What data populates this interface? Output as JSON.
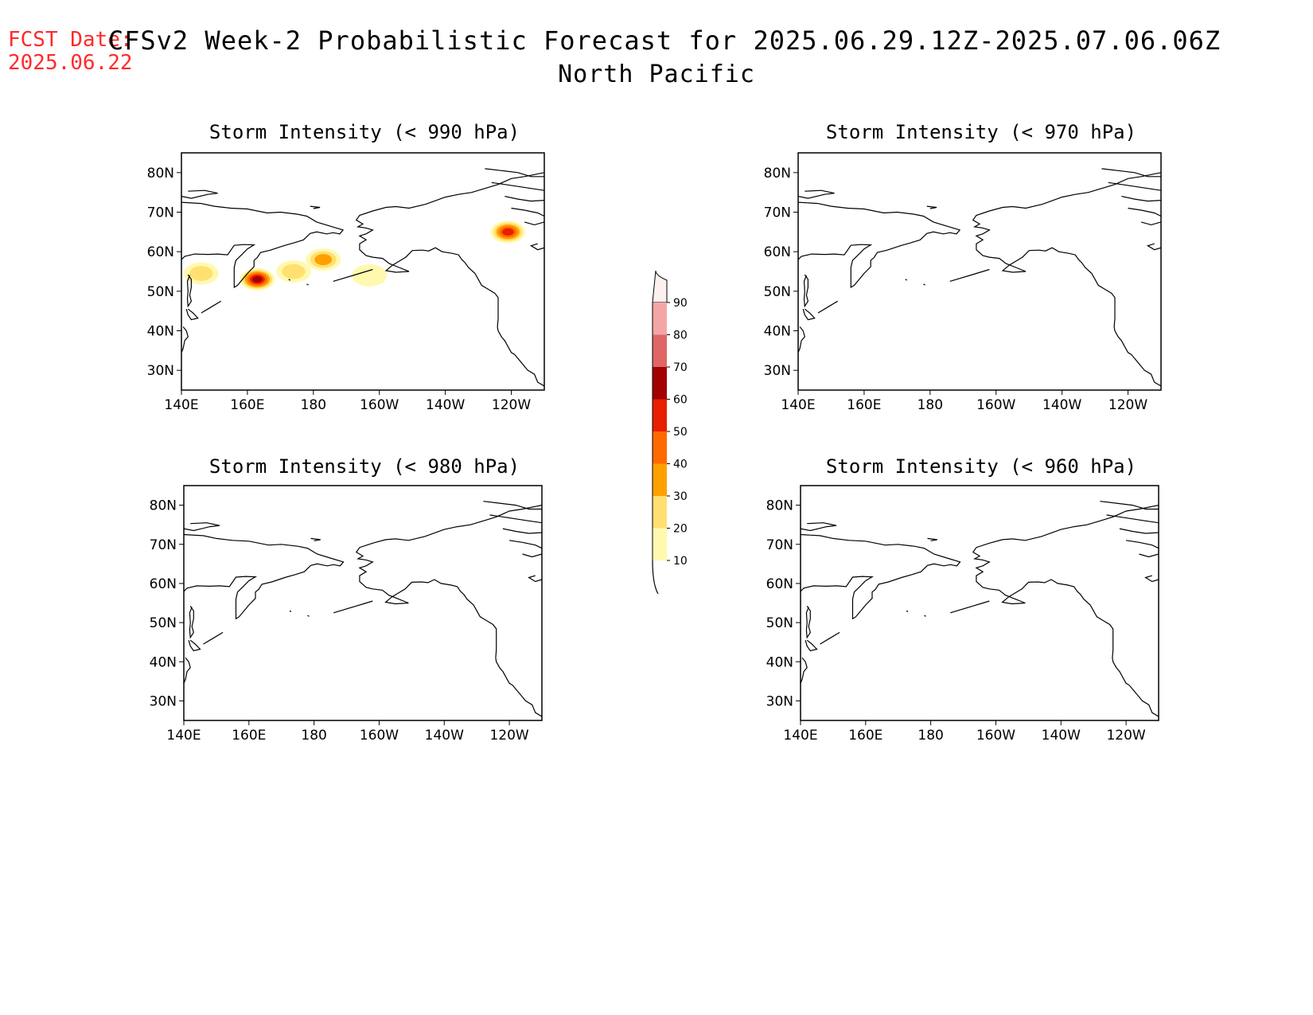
{
  "header": {
    "fcst_label": "FCST Date:",
    "fcst_date": "2025.06.22",
    "title": "CFSv2 Week-2 Probabilistic Forecast for 2025.06.29.12Z-2025.07.06.06Z",
    "subtitle": "North Pacific"
  },
  "axes": {
    "lon_ticks": [
      "140E",
      "160E",
      "180",
      "160W",
      "140W",
      "120W"
    ],
    "lat_ticks": [
      "80N",
      "70N",
      "60N",
      "50N",
      "40N",
      "30N"
    ]
  },
  "panels": [
    {
      "title": "Storm Intensity (< 990 hPa)",
      "has_data": true
    },
    {
      "title": "Storm Intensity (< 970 hPa)",
      "has_data": false
    },
    {
      "title": "Storm Intensity (< 980 hPa)",
      "has_data": false
    },
    {
      "title": "Storm Intensity (< 960 hPa)",
      "has_data": false
    }
  ],
  "colorbar": {
    "labels": [
      "90",
      "80",
      "70",
      "60",
      "50",
      "40",
      "30",
      "20",
      "10"
    ],
    "colors": [
      "#fff0f0",
      "#f4a6a6",
      "#e06666",
      "#a30000",
      "#e62000",
      "#ff6a00",
      "#ffa000",
      "#ffe070",
      "#fff9b0"
    ]
  },
  "chart_data": {
    "type": "heatmap",
    "panels": [
      {
        "title": "Storm Intensity (< 990 hPa)",
        "blobs": [
          {
            "lon": 146,
            "lat": 54.5,
            "prob": 20
          },
          {
            "lon": 163,
            "lat": 53,
            "prob": 60
          },
          {
            "lon": 174,
            "lat": 55,
            "prob": 20
          },
          {
            "lon": 183,
            "lat": 58,
            "prob": 30
          },
          {
            "lon": 197,
            "lat": 54,
            "prob": 10
          },
          {
            "lon": 239,
            "lat": 65,
            "prob": 50
          }
        ]
      },
      {
        "title": "Storm Intensity (< 970 hPa)",
        "blobs": []
      },
      {
        "title": "Storm Intensity (< 980 hPa)",
        "blobs": []
      },
      {
        "title": "Storm Intensity (< 960 hPa)",
        "blobs": []
      }
    ],
    "xlim": [
      "140E",
      "110W"
    ],
    "ylim": [
      "25N",
      "85N"
    ],
    "legend": "center"
  }
}
